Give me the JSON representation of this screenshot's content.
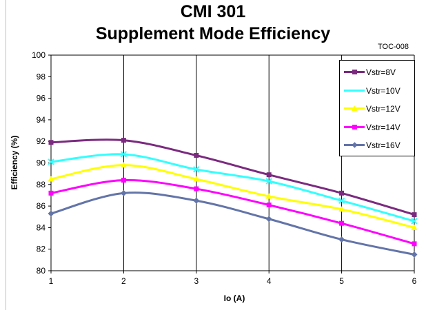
{
  "chart_data": {
    "type": "line",
    "title": "CMI  301",
    "subtitle": "Supplement Mode Efficiency",
    "annotation": "TOC-008",
    "xlabel": "Io (A)",
    "ylabel": "Efficiency (%)",
    "x": [
      1,
      2,
      3,
      4,
      5,
      6
    ],
    "xlim": [
      1,
      6
    ],
    "ylim": [
      80,
      100
    ],
    "xticks": [
      "1",
      "2",
      "3",
      "4",
      "5",
      "6"
    ],
    "yticks": [
      "80",
      "82",
      "84",
      "86",
      "88",
      "90",
      "92",
      "94",
      "96",
      "98",
      "100"
    ],
    "grid": "vertical",
    "legend_position": "top-right",
    "series": [
      {
        "name": "Vstr=8V",
        "color": "#7b2a7f",
        "marker": "square",
        "values": [
          91.9,
          92.1,
          90.7,
          88.9,
          87.2,
          85.2
        ]
      },
      {
        "name": "Vstr=10V",
        "color": "#33ffff",
        "marker": "x",
        "values": [
          90.1,
          90.8,
          89.4,
          88.3,
          86.5,
          84.6
        ]
      },
      {
        "name": "Vstr=12V",
        "color": "#ffff00",
        "marker": "triangle",
        "values": [
          88.5,
          89.8,
          88.5,
          86.9,
          85.7,
          84.0
        ]
      },
      {
        "name": "Vstr=14V",
        "color": "#ff00ff",
        "marker": "square",
        "values": [
          87.2,
          88.4,
          87.6,
          86.1,
          84.4,
          82.5
        ]
      },
      {
        "name": "Vstr=16V",
        "color": "#6374a8",
        "marker": "diamond",
        "values": [
          85.3,
          87.2,
          86.5,
          84.8,
          82.9,
          81.5
        ]
      }
    ]
  }
}
